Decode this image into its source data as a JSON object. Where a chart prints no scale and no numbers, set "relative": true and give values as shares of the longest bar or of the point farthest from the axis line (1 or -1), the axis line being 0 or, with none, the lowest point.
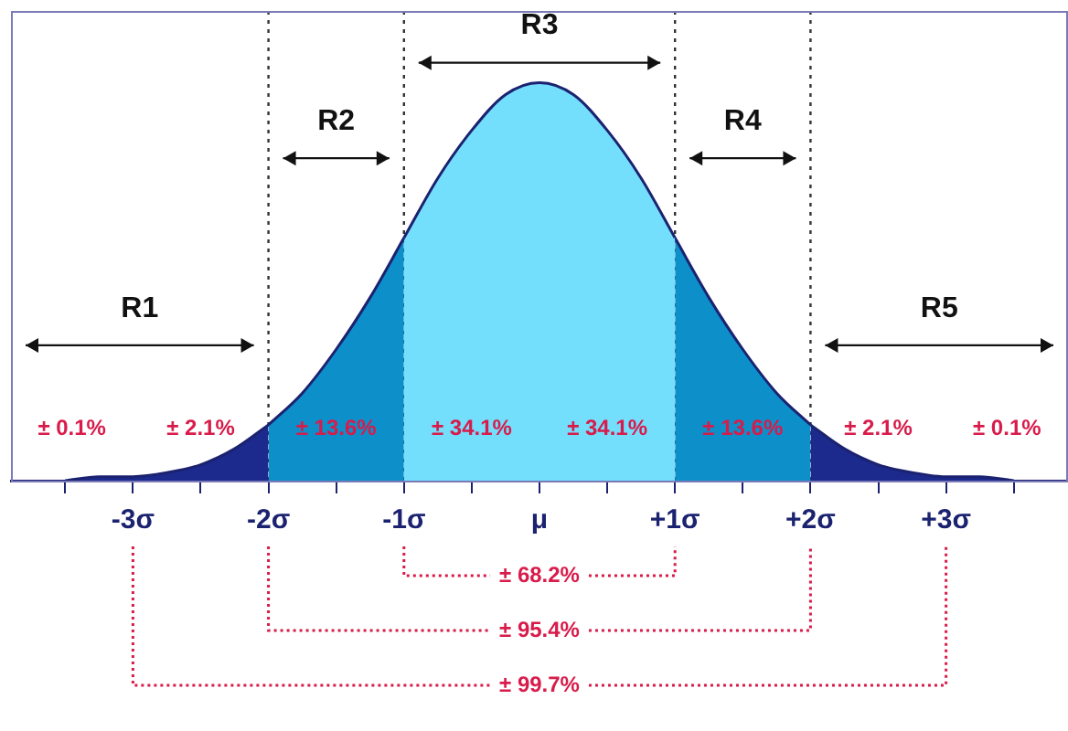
{
  "chart_data": {
    "type": "area",
    "relative": true,
    "xlim": [
      -3.9,
      3.9
    ],
    "xticks": [
      {
        "value": -3.5,
        "label": null
      },
      {
        "value": -3,
        "label": "-3σ"
      },
      {
        "value": -2.5,
        "label": null
      },
      {
        "value": -2,
        "label": "-2σ"
      },
      {
        "value": -1.5,
        "label": null
      },
      {
        "value": -1,
        "label": "-1σ"
      },
      {
        "value": -0.5,
        "label": null
      },
      {
        "value": 0,
        "label": "μ"
      },
      {
        "value": 0.5,
        "label": null
      },
      {
        "value": 1,
        "label": "+1σ"
      },
      {
        "value": 1.5,
        "label": null
      },
      {
        "value": 2,
        "label": "+2σ"
      },
      {
        "value": 2.5,
        "label": null
      },
      {
        "value": 3,
        "label": "+3σ"
      },
      {
        "value": 3.5,
        "label": null
      }
    ],
    "series": [
      {
        "color": "#1b2a8c",
        "x": [
          -3.5,
          -3.25,
          -3,
          -2.75,
          -2.5,
          -2.25,
          -2
        ],
        "values": [
          0,
          0.01,
          0.01,
          0.02,
          0.04,
          0.08,
          0.14
        ]
      },
      {
        "color": "#0d8fca",
        "x": [
          -2,
          -1.75,
          -1.5,
          -1.25,
          -1
        ],
        "values": [
          0.14,
          0.22,
          0.33,
          0.46,
          0.61
        ]
      },
      {
        "color": "#74dffc",
        "x": [
          -1,
          -0.75,
          -0.5,
          -0.25,
          0,
          0.25,
          0.5,
          0.75,
          1
        ],
        "values": [
          0.61,
          0.76,
          0.88,
          0.97,
          1,
          0.97,
          0.88,
          0.76,
          0.61
        ]
      },
      {
        "color": "#0d8fca",
        "x": [
          1,
          1.25,
          1.5,
          1.75,
          2
        ],
        "values": [
          0.61,
          0.46,
          0.33,
          0.22,
          0.14
        ]
      },
      {
        "color": "#1b2a8c",
        "x": [
          2,
          2.25,
          2.5,
          2.75,
          3,
          3.25,
          3.5
        ],
        "values": [
          0.14,
          0.08,
          0.04,
          0.02,
          0.01,
          0.01,
          0
        ]
      }
    ],
    "ref_lines": [
      {
        "axis": "x",
        "value": -2,
        "color": "#333333",
        "line_style": "dotted"
      },
      {
        "axis": "x",
        "value": -1,
        "color": "#333333",
        "line_style": "dotted"
      },
      {
        "axis": "x",
        "value": 1,
        "color": "#333333",
        "line_style": "dotted"
      },
      {
        "axis": "x",
        "value": 2,
        "color": "#333333",
        "line_style": "dotted"
      }
    ],
    "annotations": [
      "R1",
      "R2",
      "R3",
      "R4",
      "R5",
      "± 0.1%",
      "± 2.1%",
      "± 13.6%",
      "± 34.1%",
      "± 34.1%",
      "± 13.6%",
      "± 2.1%",
      "± 0.1%",
      "± 68.2%",
      "± 95.4%",
      "± 99.7%"
    ],
    "grid": false,
    "legend": false,
    "marker": "none"
  }
}
